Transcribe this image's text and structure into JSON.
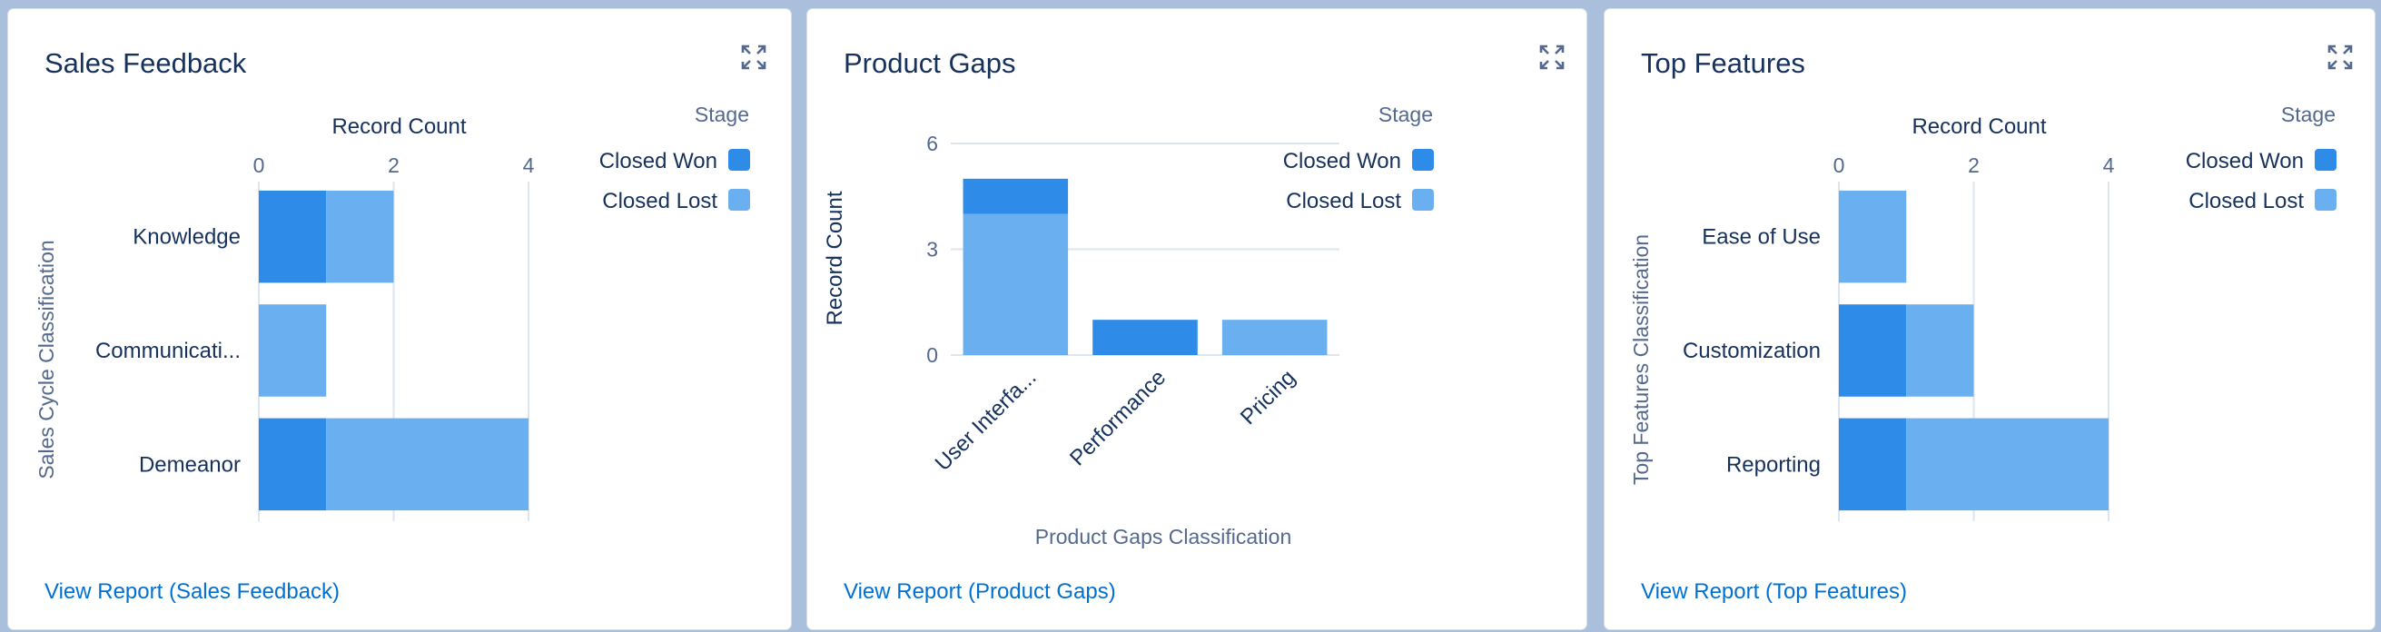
{
  "colors": {
    "closed_won": "#2e8be8",
    "closed_lost": "#6aaff0",
    "gridline": "#dde6ee",
    "axis_text": "#54698d",
    "label_text": "#16325c"
  },
  "cards": [
    {
      "title": "Sales Feedback",
      "link": "View Report (Sales Feedback)",
      "expand_icon": "expand-icon"
    },
    {
      "title": "Product Gaps",
      "link": "View Report (Product Gaps)",
      "expand_icon": "expand-icon"
    },
    {
      "title": "Top Features",
      "link": "View Report (Top Features)",
      "expand_icon": "expand-icon"
    }
  ],
  "chart_data": [
    {
      "type": "bar",
      "orientation": "horizontal",
      "stacked": true,
      "categories": [
        "Knowledge",
        "Communicati...",
        "Demeanor"
      ],
      "series": [
        {
          "name": "Closed Won",
          "values": [
            1,
            0,
            1
          ]
        },
        {
          "name": "Closed Lost",
          "values": [
            1,
            1,
            3
          ]
        }
      ],
      "xlabel": "Record Count",
      "ylabel": "Sales Cycle Classification",
      "xlim": [
        0,
        4
      ],
      "ticks": [
        0,
        2,
        4
      ],
      "legend_title": "Stage",
      "legend_position": "right",
      "grid": true
    },
    {
      "type": "bar",
      "orientation": "vertical",
      "stacked": true,
      "categories": [
        "User Interfa...",
        "Performance",
        "Pricing"
      ],
      "series": [
        {
          "name": "Closed Won",
          "values": [
            1,
            1,
            0
          ]
        },
        {
          "name": "Closed Lost",
          "values": [
            4,
            0,
            1
          ]
        }
      ],
      "xlabel": "Product Gaps Classification",
      "ylabel": "Record Count",
      "ylim": [
        0,
        6
      ],
      "ticks": [
        0,
        3,
        6
      ],
      "legend_title": "Stage",
      "legend_position": "right",
      "grid": true
    },
    {
      "type": "bar",
      "orientation": "horizontal",
      "stacked": true,
      "categories": [
        "Ease of Use",
        "Customization",
        "Reporting"
      ],
      "series": [
        {
          "name": "Closed Won",
          "values": [
            0,
            1,
            1
          ]
        },
        {
          "name": "Closed Lost",
          "values": [
            1,
            1,
            3
          ]
        }
      ],
      "xlabel": "Record Count",
      "ylabel": "Top Features Classification",
      "xlim": [
        0,
        4
      ],
      "ticks": [
        0,
        2,
        4
      ],
      "legend_title": "Stage",
      "legend_position": "right",
      "grid": true
    }
  ]
}
